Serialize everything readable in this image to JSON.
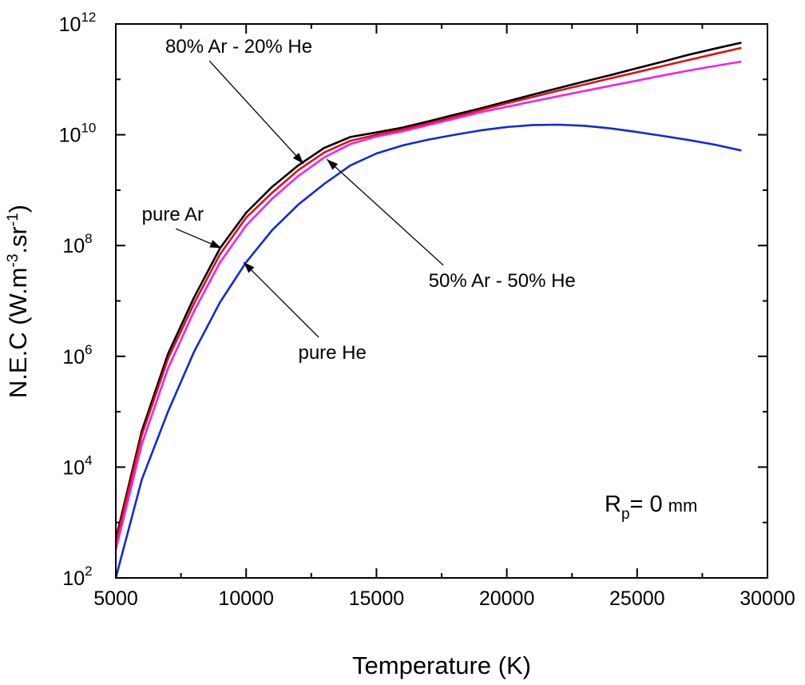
{
  "chart_data": {
    "type": "line",
    "title": "",
    "xlabel": "Temperature (K)",
    "ylabel": {
      "prefix": "N.E.C (W.m",
      "exp1": "-3",
      "middle": ".sr",
      "exp2": "-1",
      "suffix": ")"
    },
    "xlim": [
      5000,
      30000
    ],
    "ylim": [
      100,
      1000000000000
    ],
    "yscale": "log",
    "xticks": [
      5000,
      10000,
      15000,
      20000,
      25000,
      30000
    ],
    "xtick_labels": [
      "5000",
      "10000",
      "15000",
      "20000",
      "25000",
      "30000"
    ],
    "yticks": [
      {
        "value": 100,
        "base": "10",
        "exp": "2"
      },
      {
        "value": 10000,
        "base": "10",
        "exp": "4"
      },
      {
        "value": 1000000,
        "base": "10",
        "exp": "6"
      },
      {
        "value": 100000000,
        "base": "10",
        "exp": "8"
      },
      {
        "value": 10000000000,
        "base": "10",
        "exp": "10"
      },
      {
        "value": 1000000000000,
        "base": "10",
        "exp": "12"
      }
    ],
    "grid": false,
    "legend": "none",
    "x": [
      5000,
      6000,
      7000,
      8000,
      9000,
      10000,
      11000,
      12000,
      13000,
      14000,
      15000,
      16000,
      17000,
      18000,
      19000,
      20000,
      21000,
      22000,
      23000,
      24000,
      25000,
      26000,
      27000,
      28000,
      29000
    ],
    "series": [
      {
        "key": "pure_ar",
        "color": "#000000",
        "values": [
          500.0,
          45000.0,
          1100000.0,
          11500000.0,
          90000000.0,
          390000000.0,
          1150000000.0,
          2800000000.0,
          5800000000.0,
          9100000000.0,
          11000000000.0,
          13500000000.0,
          17500000000.0,
          23000000000.0,
          30000000000.0,
          40000000000.0,
          53000000000.0,
          70000000000.0,
          92000000000.0,
          120000000000.0,
          160000000000.0,
          210000000000.0,
          280000000000.0,
          360000000000.0,
          460000000000.0
        ]
      },
      {
        "key": "ar80_he20",
        "color": "#e01010",
        "values": [
          430.0,
          38000.0,
          900000.0,
          9000000.0,
          70000000.0,
          320000000.0,
          900000000.0,
          2300000000.0,
          4800000000.0,
          7800000000.0,
          10000000000.0,
          12500000000.0,
          16000000000.0,
          21000000000.0,
          28000000000.0,
          37000000000.0,
          48000000000.0,
          63000000000.0,
          81000000000.0,
          105000000000.0,
          135000000000.0,
          175000000000.0,
          225000000000.0,
          290000000000.0,
          370000000000.0
        ]
      },
      {
        "key": "ar50_he50",
        "color": "#ee22ee",
        "values": [
          320.0,
          26000.0,
          600000.0,
          6500000.0,
          50000000.0,
          230000000.0,
          700000000.0,
          1800000000.0,
          3900000000.0,
          6800000000.0,
          9300000000.0,
          11500000000.0,
          15000000000.0,
          19500000000.0,
          25500000000.0,
          32000000000.0,
          40000000000.0,
          50000000000.0,
          62000000000.0,
          77000000000.0,
          95000000000.0,
          118000000000.0,
          145000000000.0,
          175000000000.0,
          210000000000.0
        ]
      },
      {
        "key": "pure_he",
        "color": "#1428d8",
        "values": [
          100.0,
          6000.0,
          100000.0,
          1200000.0,
          9500000.0,
          50000000.0,
          190000000.0,
          550000000.0,
          1300000000.0,
          2800000000.0,
          4600000000.0,
          6400000000.0,
          8200000000.0,
          10000000000.0,
          12000000000.0,
          13800000000.0,
          15000000000.0,
          15200000000.0,
          14500000000.0,
          13000000000.0,
          11200000000.0,
          9500000000.0,
          8000000000.0,
          6600000000.0,
          5200000000.0
        ]
      }
    ],
    "annotations": [
      {
        "key": "ar80_he20",
        "text": "80% Ar - 20% He",
        "at": [
          12200,
          3000000000.0
        ],
        "label_pos": [
          6900,
          300000000000.0
        ]
      },
      {
        "key": "pure_ar",
        "text": "pure Ar",
        "at": [
          9050,
          90000000.0
        ],
        "label_pos": [
          6000,
          280000000.0
        ]
      },
      {
        "key": "ar50_he50",
        "text": "50% Ar - 50% He",
        "at": [
          13100,
          3600000000.0
        ],
        "label_pos": [
          17000,
          18000000.0
        ]
      },
      {
        "key": "pure_he",
        "text": "pure He",
        "at": [
          9900,
          50000000.0
        ],
        "label_pos": [
          12000,
          900000.0
        ]
      }
    ],
    "rp_label": {
      "main": "R",
      "sub": "p",
      "value": "= 0",
      "unit": "mm"
    }
  }
}
